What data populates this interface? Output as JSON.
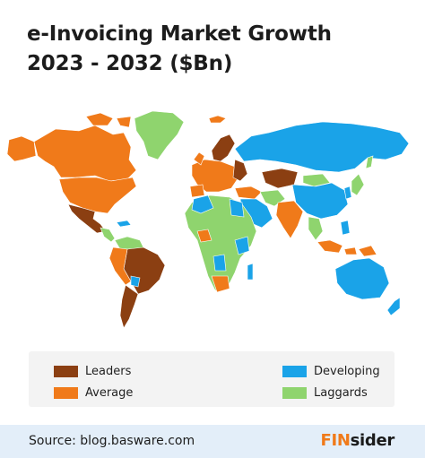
{
  "title": {
    "line1": "e-Invoicing Market Growth",
    "line2": "2023 - 2032 ($Bn)"
  },
  "colors": {
    "leaders": "#8b3f12",
    "average": "#f07a1a",
    "developing": "#1aa3e8",
    "laggards": "#8fd46e"
  },
  "legend": {
    "leaders": "Leaders",
    "average": "Average",
    "developing": "Developing",
    "laggards": "Laggards"
  },
  "footer": {
    "source": "Source: blog.basware.com",
    "logo_part1": "FIN",
    "logo_part2": "sider"
  }
}
